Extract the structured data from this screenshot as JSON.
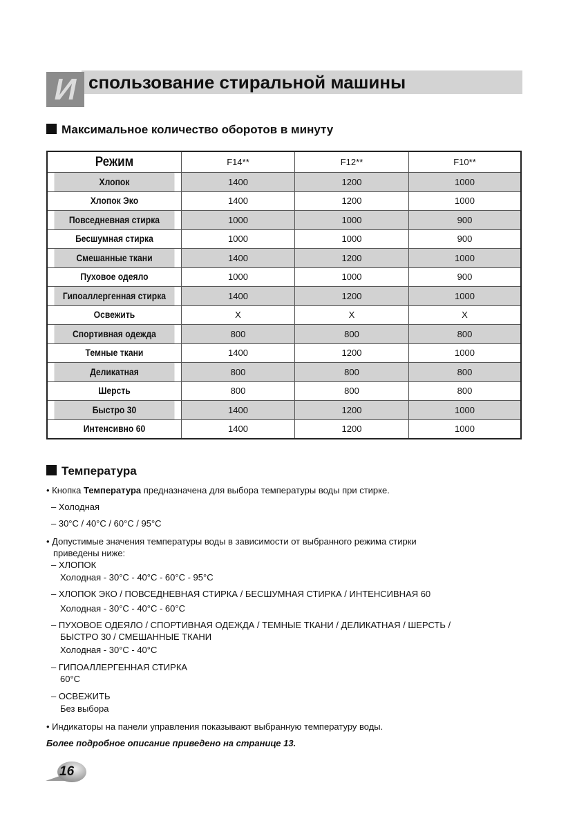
{
  "header": {
    "title_letter": "И",
    "title_rest": "спользование стиральной машины"
  },
  "rpm_section": {
    "heading": "Максимальное количество оборотов в минуту",
    "columns": [
      "Режим",
      "F14**",
      "F12**",
      "F10**"
    ],
    "rows": [
      [
        "Хлопок",
        "1400",
        "1200",
        "1000"
      ],
      [
        "Хлопок Эко",
        "1400",
        "1200",
        "1000"
      ],
      [
        "Повседневная стирка",
        "1000",
        "1000",
        "900"
      ],
      [
        "Бесшумная стирка",
        "1000",
        "1000",
        "900"
      ],
      [
        "Смешанные ткани",
        "1400",
        "1200",
        "1000"
      ],
      [
        "Пуховое одеяло",
        "1000",
        "1000",
        "900"
      ],
      [
        "Гипоаллергенная стирка",
        "1400",
        "1200",
        "1000"
      ],
      [
        "Освежить",
        "X",
        "X",
        "X"
      ],
      [
        "Спортивная одежда",
        "800",
        "800",
        "800"
      ],
      [
        "Темные ткани",
        "1400",
        "1200",
        "1000"
      ],
      [
        "Деликатная",
        "800",
        "800",
        "800"
      ],
      [
        "Шерсть",
        "800",
        "800",
        "800"
      ],
      [
        "Быстро 30",
        "1400",
        "1200",
        "1000"
      ],
      [
        "Интенсивно 60",
        "1400",
        "1200",
        "1000"
      ]
    ]
  },
  "temp_section": {
    "heading": "Температура",
    "intro_pre": "• Кнопка ",
    "intro_bold": "Температура",
    "intro_post": " предназначена для выбора температуры воды при стирке.",
    "options": [
      "– Холодная",
      "– 30°C / 40°C / 60°C / 95°C"
    ],
    "allowed_line1": "• Допустимые значения температуры воды в зависимости от выбранного режима стирки",
    "allowed_line2": "приведены ниже:",
    "groups": [
      {
        "name_lines": [
          "– ХЛОПОК"
        ],
        "temps": "Холодная - 30°C - 40°C - 60°C - 95°C"
      },
      {
        "name_lines": [
          "– ХЛОПОК ЭКО / ПОВСЕДНЕВНАЯ СТИРКА / БЕСШУМНАЯ СТИРКА / ИНТЕНСИВНАЯ 60"
        ],
        "temps": "Холодная - 30°C - 40°C - 60°C"
      },
      {
        "name_lines": [
          "– ПУХОВОЕ ОДЕЯЛО / СПОРТИВНАЯ ОДЕЖДА / ТЕМНЫЕ ТКАНИ / ДЕЛИКАТНАЯ / ШЕРСТЬ /",
          "БЫСТРО 30 / СМЕШАННЫЕ ТКАНИ"
        ],
        "temps": "Холодная - 30°C - 40°C"
      },
      {
        "name_lines": [
          "– ГИПОАЛЛЕРГЕННАЯ СТИРКА"
        ],
        "temps": "60°C"
      },
      {
        "name_lines": [
          "– ОСВЕЖИТЬ"
        ],
        "temps": "Без выбора"
      }
    ],
    "indicators": "• Индикаторы на панели управления показывают выбранную температуру воды.",
    "more_info": "Более подробное описание приведено на странице 13."
  },
  "footer": {
    "page_number": "16"
  }
}
